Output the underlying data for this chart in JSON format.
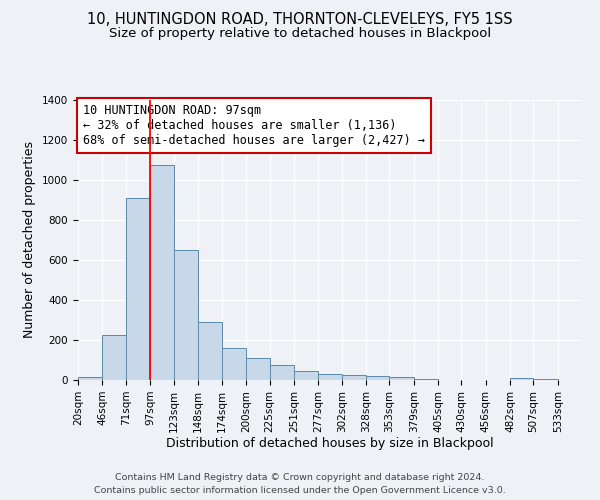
{
  "title1": "10, HUNTINGDON ROAD, THORNTON-CLEVELEYS, FY5 1SS",
  "title2": "Size of property relative to detached houses in Blackpool",
  "xlabel": "Distribution of detached houses by size in Blackpool",
  "ylabel": "Number of detached properties",
  "footer1": "Contains HM Land Registry data © Crown copyright and database right 2024.",
  "footer2": "Contains public sector information licensed under the Open Government Licence v3.0.",
  "bin_labels": [
    "20sqm",
    "46sqm",
    "71sqm",
    "97sqm",
    "123sqm",
    "148sqm",
    "174sqm",
    "200sqm",
    "225sqm",
    "251sqm",
    "277sqm",
    "302sqm",
    "328sqm",
    "353sqm",
    "379sqm",
    "405sqm",
    "430sqm",
    "456sqm",
    "482sqm",
    "507sqm",
    "533sqm"
  ],
  "bin_edges": [
    20,
    46,
    71,
    97,
    123,
    148,
    174,
    200,
    225,
    251,
    277,
    302,
    328,
    353,
    379,
    405,
    430,
    456,
    482,
    507,
    533
  ],
  "bar_heights": [
    15,
    225,
    910,
    1075,
    650,
    290,
    160,
    110,
    75,
    45,
    30,
    25,
    20,
    15,
    5,
    0,
    0,
    0,
    10,
    5,
    0
  ],
  "bar_color": "#c8d8e8",
  "bar_edge_color": "#5a8aaa",
  "red_line_x": 97,
  "ylim": [
    0,
    1400
  ],
  "yticks": [
    0,
    200,
    400,
    600,
    800,
    1000,
    1200,
    1400
  ],
  "annotation_title": "10 HUNTINGDON ROAD: 97sqm",
  "annotation_line1": "← 32% of detached houses are smaller (1,136)",
  "annotation_line2": "68% of semi-detached houses are larger (2,427) →",
  "annotation_box_color": "#ffffff",
  "annotation_box_edge": "#cc0000",
  "background_color": "#eef2f7",
  "grid_color": "#ffffff",
  "title_fontsize": 10.5,
  "subtitle_fontsize": 9.5,
  "label_fontsize": 9,
  "tick_fontsize": 7.5,
  "footer_fontsize": 6.8,
  "ann_fontsize": 8.5
}
